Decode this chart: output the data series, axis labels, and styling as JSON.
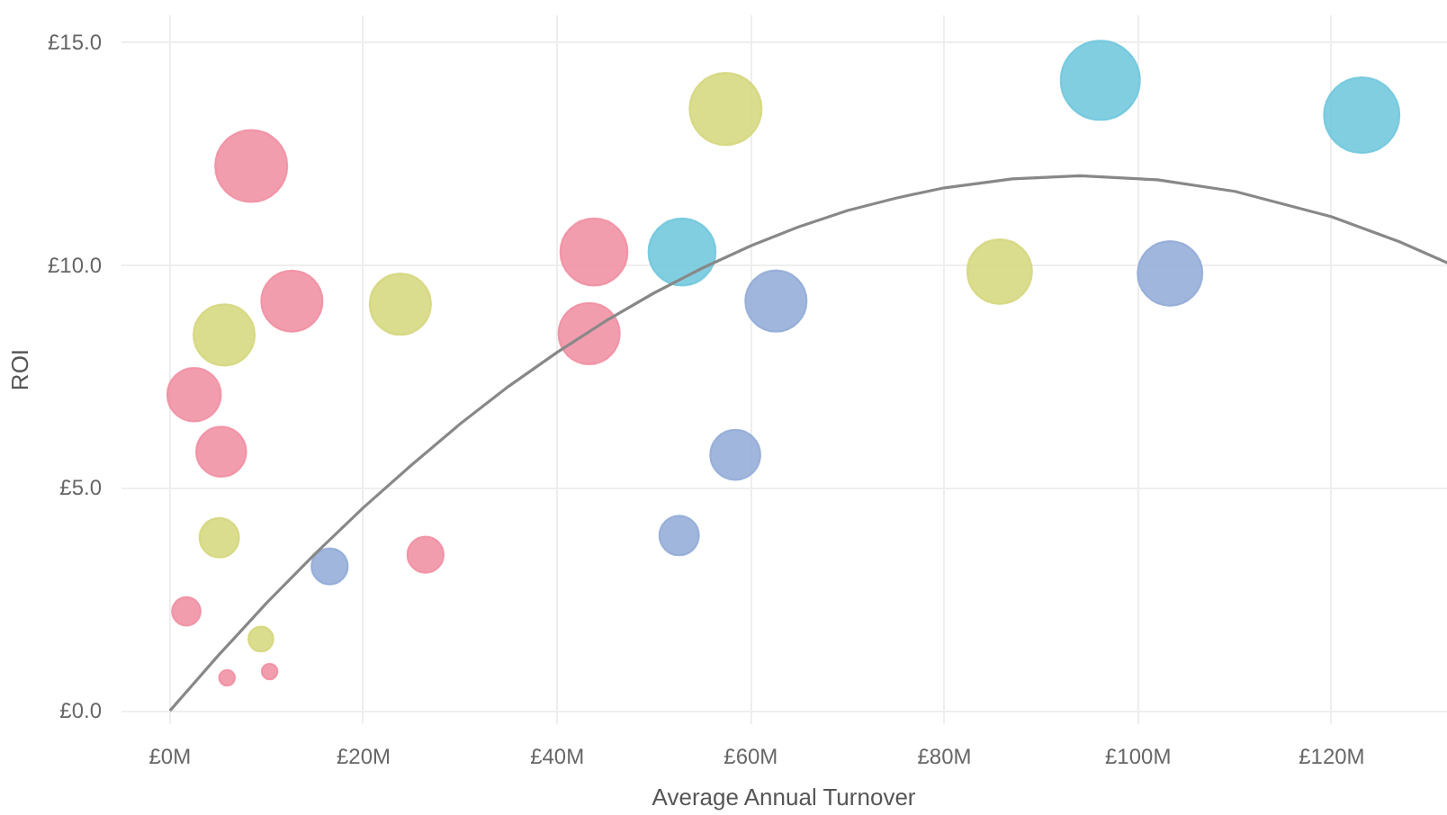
{
  "chart_data": {
    "type": "bubble",
    "xlabel": "Average Annual Turnover",
    "ylabel": "ROI",
    "xlim": [
      -5,
      132
    ],
    "ylim": [
      -0.3,
      15.6
    ],
    "xticks": [
      {
        "value": 0,
        "label": "£0M"
      },
      {
        "value": 20,
        "label": "£20M"
      },
      {
        "value": 40,
        "label": "£40M"
      },
      {
        "value": 60,
        "label": "£60M"
      },
      {
        "value": 80,
        "label": "£80M"
      },
      {
        "value": 100,
        "label": "£100M"
      },
      {
        "value": 120,
        "label": "£120M"
      }
    ],
    "yticks": [
      {
        "value": 0,
        "label": "£0.0"
      },
      {
        "value": 5,
        "label": "£5.0"
      },
      {
        "value": 10,
        "label": "£10.0"
      },
      {
        "value": 15,
        "label": "£15.0"
      }
    ],
    "grid": true,
    "series": [
      {
        "color": "#f08ca0",
        "x": [
          8.4,
          43.8,
          12.6,
          43.3,
          2.5,
          5.3,
          26.4,
          1.7,
          5.9,
          10.3
        ],
        "values": [
          12.22,
          10.29,
          9.19,
          8.46,
          7.09,
          5.81,
          3.5,
          2.23,
          0.74,
          0.88
        ],
        "sizes": [
          0.83,
          0.72,
          0.6,
          0.6,
          0.46,
          0.4,
          0.21,
          0.13,
          0.04,
          0.04
        ]
      },
      {
        "color": "#d4d67a",
        "x": [
          57.4,
          23.8,
          5.6,
          5.1,
          9.4,
          85.7
        ],
        "values": [
          13.5,
          9.12,
          8.43,
          3.88,
          1.61,
          9.85
        ],
        "sizes": [
          0.83,
          0.6,
          0.6,
          0.25,
          0.1,
          0.67
        ]
      },
      {
        "color": "#6cc6dc",
        "x": [
          52.9,
          96.1,
          123.1
        ],
        "values": [
          10.29,
          14.14,
          13.36
        ],
        "sizes": [
          0.72,
          1,
          0.91
        ]
      },
      {
        "color": "#8fa9d6",
        "x": [
          62.6,
          58.4,
          52.6,
          16.5,
          103.3
        ],
        "values": [
          9.19,
          5.74,
          3.93,
          3.24,
          9.81
        ],
        "sizes": [
          0.6,
          0.4,
          0.25,
          0.21,
          0.67
        ]
      },
      {
        "type": "line",
        "color": "#888888",
        "x": [
          0,
          5,
          10,
          15,
          20,
          25,
          30,
          35,
          40,
          45,
          50,
          55,
          60,
          65,
          70,
          75,
          80,
          87,
          94,
          102,
          110,
          120,
          127,
          132
        ],
        "values": [
          0.0,
          1.24,
          2.42,
          3.52,
          4.56,
          5.52,
          6.44,
          7.28,
          8.04,
          8.74,
          9.37,
          9.93,
          10.43,
          10.86,
          11.22,
          11.5,
          11.73,
          11.93,
          12.0,
          11.91,
          11.65,
          11.08,
          10.52,
          10.04
        ]
      }
    ]
  }
}
